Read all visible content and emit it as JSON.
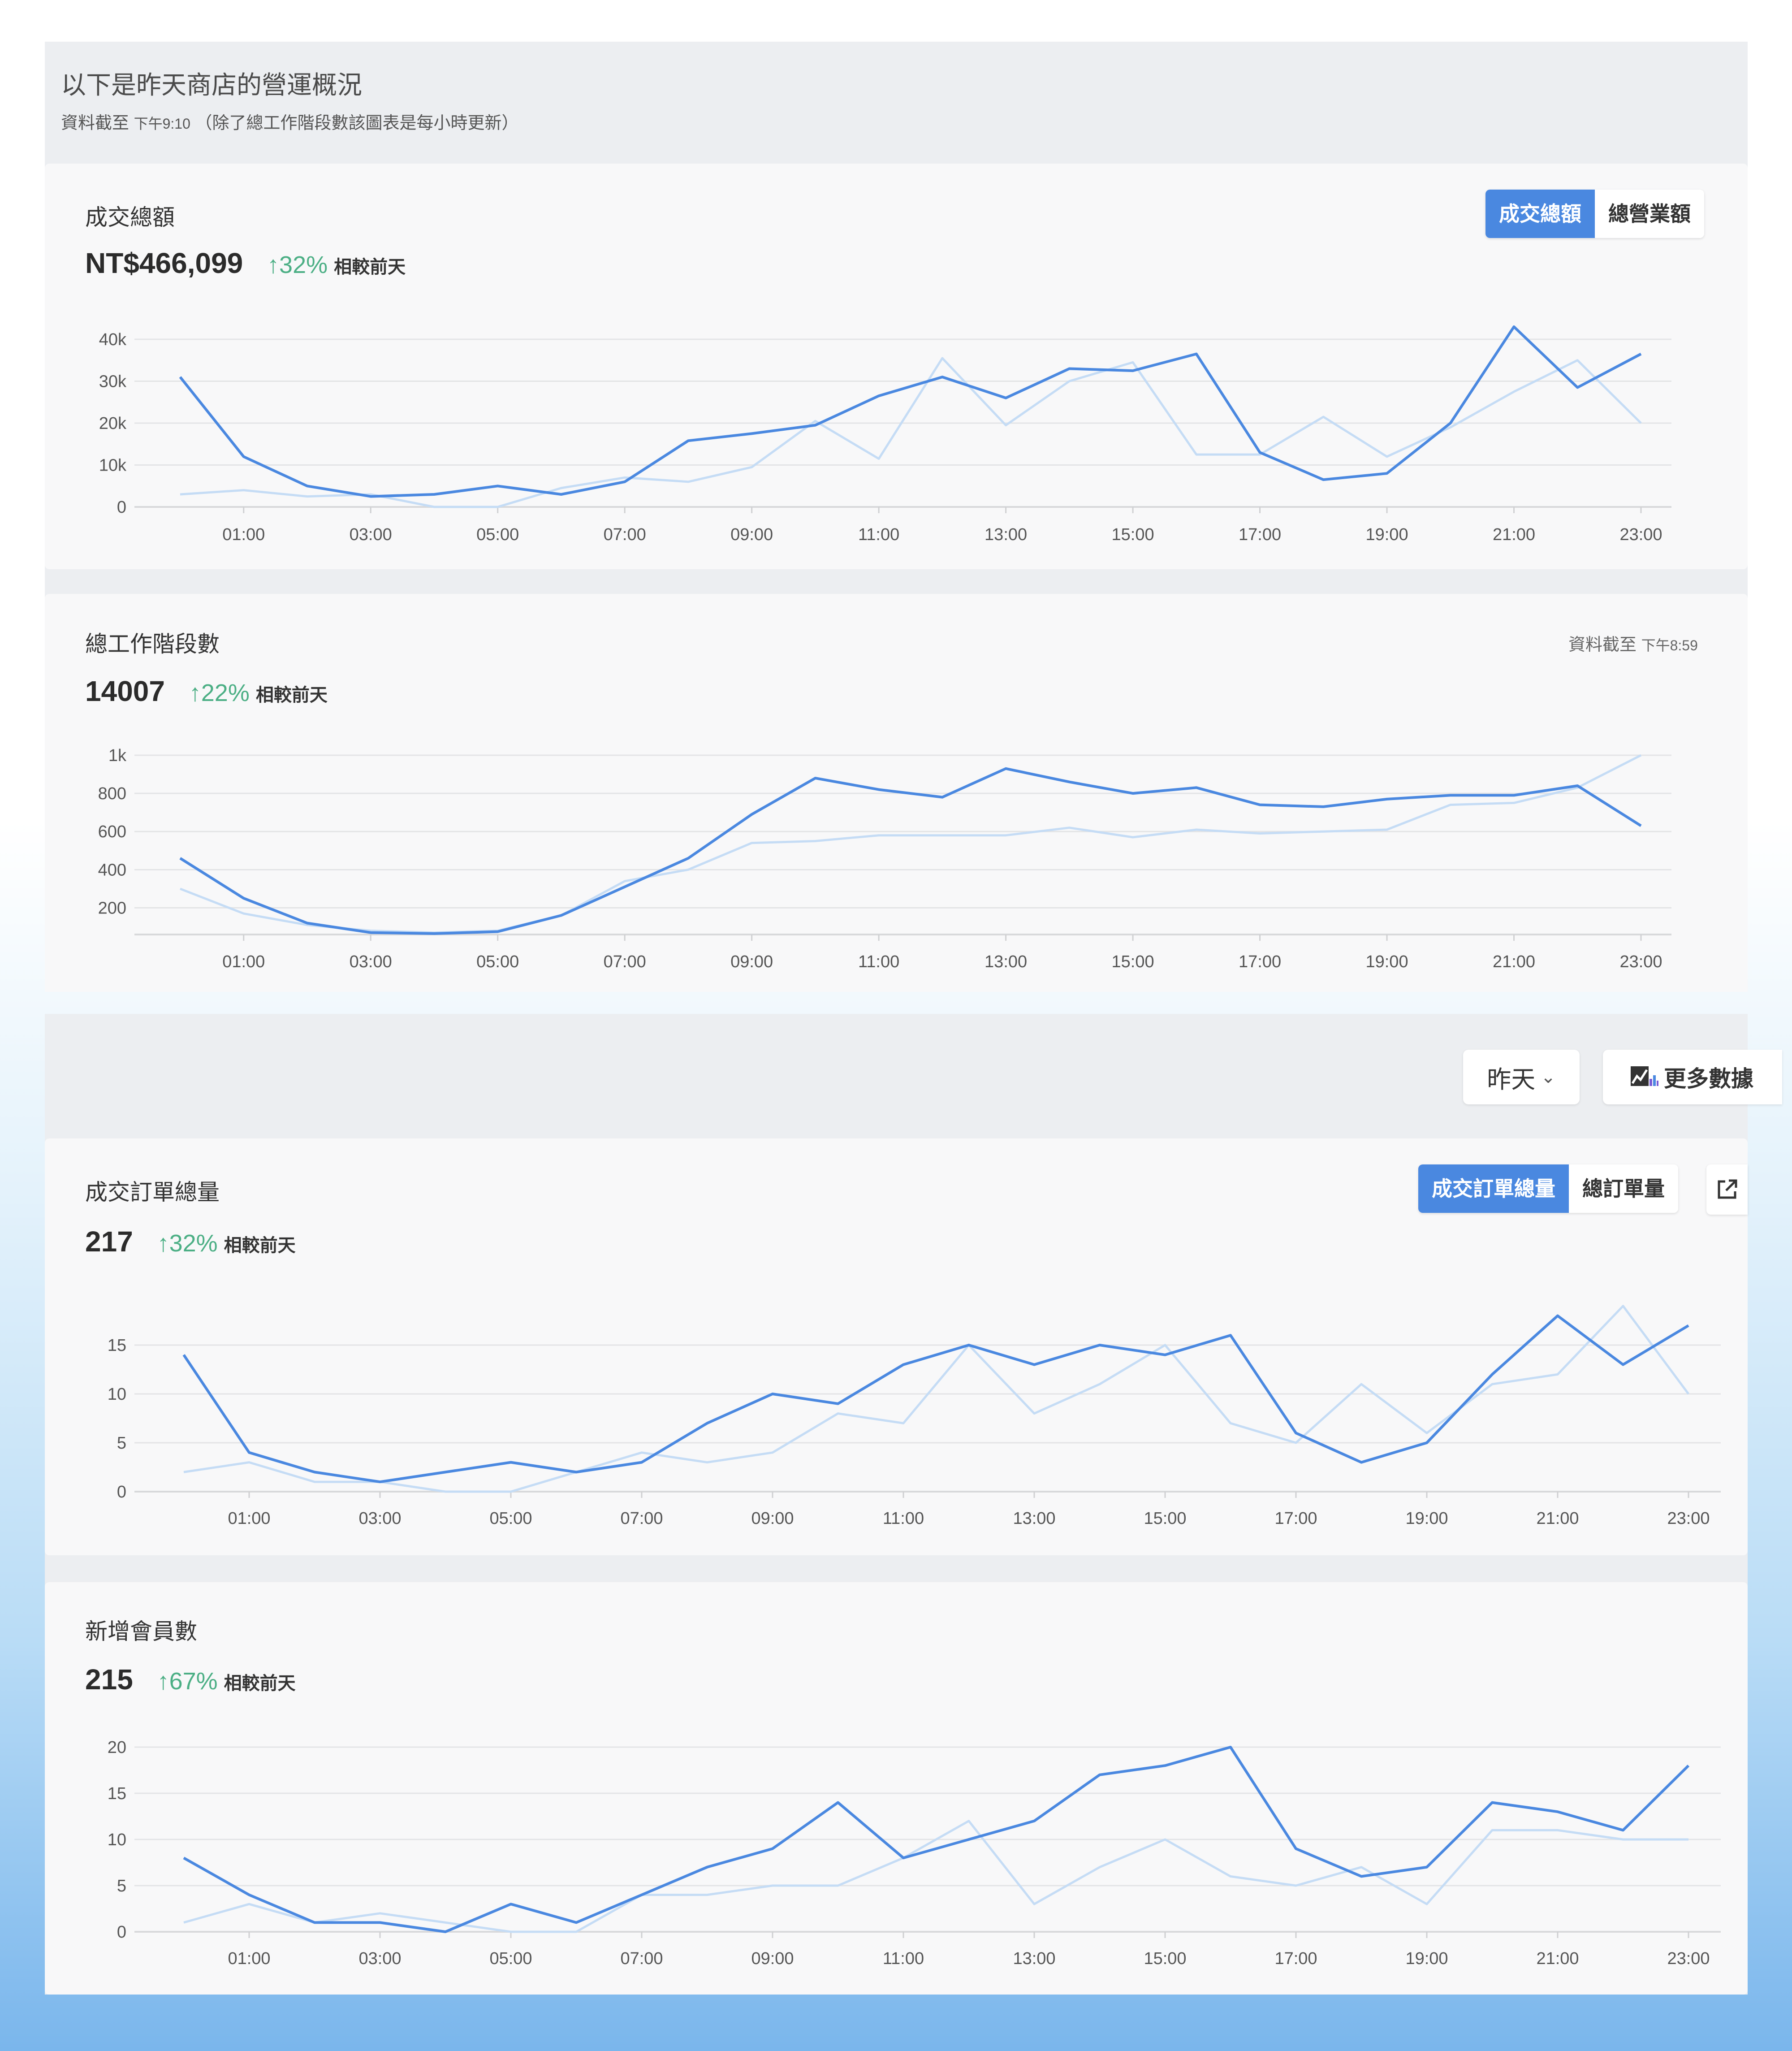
{
  "intro": {
    "title": "以下是昨天商店的營運概況",
    "subtitle_prefix": "資料截至",
    "subtitle_time": "下午9:10",
    "subtitle_suffix": "（除了總工作階段數該圖表是每小時更新）"
  },
  "controls": {
    "date_range": "昨天",
    "more_data": "更多數據"
  },
  "comparison_label": "相較前天",
  "cards": {
    "gmv": {
      "title": "成交總額",
      "value": "NT$466,099",
      "change": "32%",
      "toggle": [
        "成交總額",
        "總營業額"
      ],
      "active_toggle": "成交總額"
    },
    "sessions": {
      "title": "總工作階段數",
      "value": "14007",
      "change": "22%",
      "update_prefix": "資料截至",
      "update_time": "下午8:59"
    },
    "orders": {
      "title": "成交訂單總量",
      "value": "217",
      "change": "32%",
      "toggle": [
        "成交訂單總量",
        "總訂單量"
      ],
      "active_toggle": "成交訂單總量"
    },
    "members": {
      "title": "新增會員數",
      "value": "215",
      "change": "67%"
    }
  },
  "colors": {
    "primary": "#4a88e0",
    "comparison": "#c5dcf5",
    "positive": "#4caf85"
  },
  "chart_data": [
    {
      "id": "gmv",
      "type": "line",
      "x": [
        "00:00",
        "01:00",
        "02:00",
        "03:00",
        "04:00",
        "05:00",
        "06:00",
        "07:00",
        "08:00",
        "09:00",
        "10:00",
        "11:00",
        "12:00",
        "13:00",
        "14:00",
        "15:00",
        "16:00",
        "17:00",
        "18:00",
        "19:00",
        "20:00",
        "21:00",
        "22:00",
        "23:00"
      ],
      "x_tick_labels": [
        "01:00",
        "03:00",
        "05:00",
        "07:00",
        "09:00",
        "11:00",
        "13:00",
        "15:00",
        "17:00",
        "19:00",
        "21:00",
        "23:00"
      ],
      "y_ticks": [
        0,
        10000,
        20000,
        30000,
        40000
      ],
      "y_tick_labels": [
        "0",
        "10k",
        "20k",
        "30k",
        "40k"
      ],
      "ylim": [
        0,
        40000
      ],
      "grid": true,
      "series": [
        {
          "role": "current",
          "values": [
            31000,
            12000,
            5000,
            2500,
            3000,
            5000,
            3000,
            6000,
            15800,
            17500,
            19500,
            26500,
            31000,
            26000,
            33000,
            32500,
            36500,
            13000,
            6500,
            8000,
            20000,
            43000,
            28500,
            36500
          ]
        },
        {
          "role": "previous",
          "values": [
            3000,
            4000,
            2500,
            3000,
            0,
            0,
            4500,
            7000,
            6000,
            9500,
            20500,
            11500,
            35500,
            19500,
            30000,
            34500,
            12500,
            12500,
            21500,
            12000,
            19000,
            27500,
            35000,
            20000
          ]
        }
      ]
    },
    {
      "id": "sessions",
      "type": "line",
      "x": [
        "00:00",
        "01:00",
        "02:00",
        "03:00",
        "04:00",
        "05:00",
        "06:00",
        "07:00",
        "08:00",
        "09:00",
        "10:00",
        "11:00",
        "12:00",
        "13:00",
        "14:00",
        "15:00",
        "16:00",
        "17:00",
        "18:00",
        "19:00",
        "20:00",
        "21:00",
        "22:00",
        "23:00"
      ],
      "x_tick_labels": [
        "01:00",
        "03:00",
        "05:00",
        "07:00",
        "09:00",
        "11:00",
        "13:00",
        "15:00",
        "17:00",
        "19:00",
        "21:00",
        "23:00"
      ],
      "y_ticks": [
        200,
        400,
        600,
        800,
        1000
      ],
      "y_tick_labels": [
        "200",
        "400",
        "600",
        "800",
        "1k"
      ],
      "ylim": [
        60,
        1000
      ],
      "grid": true,
      "series": [
        {
          "role": "current",
          "values": [
            460,
            250,
            120,
            70,
            65,
            75,
            160,
            310,
            460,
            690,
            880,
            820,
            780,
            930,
            860,
            800,
            830,
            740,
            730,
            770,
            790,
            790,
            840,
            630
          ]
        },
        {
          "role": "previous",
          "values": [
            300,
            170,
            110,
            80,
            70,
            80,
            160,
            340,
            400,
            540,
            550,
            580,
            580,
            580,
            620,
            570,
            610,
            590,
            600,
            610,
            740,
            750,
            830,
            1000
          ]
        }
      ]
    },
    {
      "id": "orders",
      "type": "line",
      "x": [
        "00:00",
        "01:00",
        "02:00",
        "03:00",
        "04:00",
        "05:00",
        "06:00",
        "07:00",
        "08:00",
        "09:00",
        "10:00",
        "11:00",
        "12:00",
        "13:00",
        "14:00",
        "15:00",
        "16:00",
        "17:00",
        "18:00",
        "19:00",
        "20:00",
        "21:00",
        "22:00",
        "23:00"
      ],
      "x_tick_labels": [
        "01:00",
        "03:00",
        "05:00",
        "07:00",
        "09:00",
        "11:00",
        "13:00",
        "15:00",
        "17:00",
        "19:00",
        "21:00",
        "23:00"
      ],
      "y_ticks": [
        0,
        5,
        10,
        15
      ],
      "y_tick_labels": [
        "0",
        "5",
        "10",
        "15"
      ],
      "ylim": [
        0,
        15
      ],
      "grid": true,
      "series": [
        {
          "role": "current",
          "values": [
            14,
            4,
            2,
            1,
            2,
            3,
            2,
            3,
            7,
            10,
            9,
            13,
            15,
            13,
            15,
            14,
            16,
            6,
            3,
            5,
            12,
            18,
            13,
            17
          ]
        },
        {
          "role": "previous",
          "values": [
            2,
            3,
            1,
            1,
            0,
            0,
            2,
            4,
            3,
            4,
            8,
            7,
            15,
            8,
            11,
            15,
            7,
            5,
            11,
            6,
            11,
            12,
            19,
            10
          ]
        }
      ]
    },
    {
      "id": "members",
      "type": "line",
      "x": [
        "00:00",
        "01:00",
        "02:00",
        "03:00",
        "04:00",
        "05:00",
        "06:00",
        "07:00",
        "08:00",
        "09:00",
        "10:00",
        "11:00",
        "12:00",
        "13:00",
        "14:00",
        "15:00",
        "16:00",
        "17:00",
        "18:00",
        "19:00",
        "20:00",
        "21:00",
        "22:00",
        "23:00"
      ],
      "x_tick_labels": [
        "01:00",
        "03:00",
        "05:00",
        "07:00",
        "09:00",
        "11:00",
        "13:00",
        "15:00",
        "17:00",
        "19:00",
        "21:00",
        "23:00"
      ],
      "y_ticks": [
        0,
        5,
        10,
        15,
        20
      ],
      "y_tick_labels": [
        "0",
        "5",
        "10",
        "15",
        "20"
      ],
      "ylim": [
        0,
        20
      ],
      "grid": true,
      "series": [
        {
          "role": "current",
          "values": [
            8,
            4,
            1,
            1,
            0,
            3,
            1,
            4,
            7,
            9,
            14,
            8,
            10,
            12,
            17,
            18,
            20,
            9,
            6,
            7,
            14,
            13,
            11,
            18
          ]
        },
        {
          "role": "previous",
          "values": [
            1,
            3,
            1,
            2,
            1,
            0,
            0,
            4,
            4,
            5,
            5,
            8,
            12,
            3,
            7,
            10,
            6,
            5,
            7,
            3,
            11,
            11,
            10,
            10
          ]
        }
      ]
    }
  ]
}
